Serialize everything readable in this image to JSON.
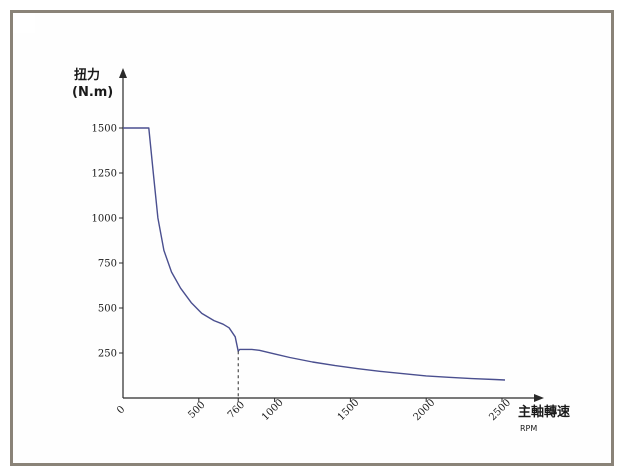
{
  "chart_data": {
    "type": "line",
    "title": "",
    "ylabel": "扭力",
    "ylabel_unit": "(N.m)",
    "xlabel": "主軸轉速",
    "xlabel_unit": "RPM",
    "xlim": [
      0,
      2600
    ],
    "ylim": [
      0,
      1700
    ],
    "x_ticks": [
      0,
      500,
      760,
      1000,
      1500,
      2000,
      2500
    ],
    "x_tick_labels": [
      "0",
      "500",
      "760",
      "1000",
      "1500",
      "2000",
      "2500"
    ],
    "y_ticks": [
      250,
      500,
      750,
      1000,
      1250,
      1500
    ],
    "y_tick_labels": [
      "250",
      "500",
      "750",
      "1000",
      "1250",
      "1500"
    ],
    "grid": false,
    "annotation": {
      "marker_x": 760,
      "marker_style": "dashed"
    },
    "line_color": "#4a4f8f",
    "series": [
      {
        "x": [
          0,
          170,
          200,
          230,
          270,
          320,
          380,
          450,
          520,
          600,
          660,
          700,
          740,
          760,
          770,
          800,
          850,
          900,
          1000,
          1100,
          1250,
          1400,
          1550,
          1700,
          1850,
          2000,
          2150,
          2300,
          2450,
          2520
        ],
        "y": [
          1500,
          1500,
          1250,
          1000,
          820,
          700,
          610,
          530,
          470,
          430,
          410,
          390,
          340,
          260,
          270,
          270,
          270,
          265,
          245,
          225,
          200,
          180,
          163,
          148,
          135,
          123,
          115,
          108,
          103,
          100
        ]
      }
    ]
  }
}
